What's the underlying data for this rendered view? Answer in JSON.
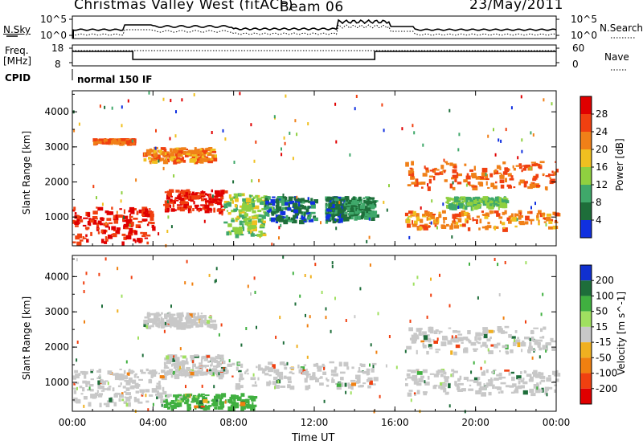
{
  "header": {
    "title": "Christmas Valley West (fitACF)",
    "beam": "Beam 06",
    "date": "23/May/2011"
  },
  "noise_panel": {
    "left_label": "N.Sky",
    "right_label": "N.Search",
    "left_ticks": [
      "10^5",
      "10^0"
    ],
    "right_ticks": [
      "10^5",
      "10^0"
    ]
  },
  "freq_panel": {
    "left_label": "Freq.",
    "left_unit": "[MHz]",
    "right_label": "Nave",
    "left_ticks": [
      "18",
      "8"
    ],
    "right_ticks": [
      "60",
      "0"
    ]
  },
  "cpid": {
    "label": "CPID",
    "mode": "normal 150 IF"
  },
  "colors": {
    "power_scale": [
      "#1030e0",
      "#1e6e3a",
      "#3fa86a",
      "#8fd040",
      "#f0c020",
      "#f08018",
      "#f04010",
      "#e00000"
    ],
    "velocity_scale": [
      "#1030d0",
      "#1e6e3a",
      "#40b040",
      "#a0e060",
      "#c8c8c8",
      "#f0b020",
      "#f08010",
      "#f04010",
      "#e00000"
    ]
  },
  "chart_data": [
    {
      "type": "heatmap",
      "title": "",
      "ylabel": "Slant Range [km]",
      "xlabel": "",
      "x_range": [
        "00:00",
        "24:00"
      ],
      "ylim": [
        180,
        4600
      ],
      "y_ticks": [
        "1000",
        "2000",
        "3000",
        "4000"
      ],
      "colorbar": {
        "label": "Power [dB]",
        "ticks": [
          "4",
          "8",
          "12",
          "16",
          "20",
          "24",
          "28"
        ],
        "range": [
          0,
          32
        ]
      },
      "regions": [
        {
          "t0": 0.0,
          "t1": 4.0,
          "r0": 300,
          "r1": 1300,
          "level": 28
        },
        {
          "t0": 1.0,
          "t1": 3.0,
          "r0": 3150,
          "r1": 3250,
          "level": 24
        },
        {
          "t0": 3.5,
          "t1": 7.0,
          "r0": 2600,
          "r1": 3000,
          "level": 22
        },
        {
          "t0": 4.5,
          "t1": 7.5,
          "r0": 1200,
          "r1": 1800,
          "level": 28
        },
        {
          "t0": 7.5,
          "t1": 9.5,
          "r0": 500,
          "r1": 1700,
          "level": 14
        },
        {
          "t0": 9.5,
          "t1": 12.0,
          "r0": 900,
          "r1": 1600,
          "level": 6
        },
        {
          "t0": 12.5,
          "t1": 13.5,
          "r0": 900,
          "r1": 1600,
          "level": 6
        },
        {
          "t0": 13.5,
          "t1": 15.0,
          "r0": 1000,
          "r1": 1600,
          "level": 8
        },
        {
          "t0": 16.5,
          "t1": 24.0,
          "r0": 1850,
          "r1": 2600,
          "level": 24
        },
        {
          "t0": 16.5,
          "t1": 24.0,
          "r0": 700,
          "r1": 1200,
          "level": 22
        },
        {
          "t0": 18.5,
          "t1": 21.5,
          "r0": 1300,
          "r1": 1600,
          "level": 12
        }
      ]
    },
    {
      "type": "heatmap",
      "title": "",
      "ylabel": "Slant Range [km]",
      "xlabel": "Time UT",
      "x_ticks": [
        "00:00",
        "04:00",
        "08:00",
        "12:00",
        "16:00",
        "20:00",
        "00:00"
      ],
      "ylim": [
        180,
        4600
      ],
      "y_ticks": [
        "1000",
        "2000",
        "3000",
        "4000"
      ],
      "colorbar": {
        "label": "Velocity [m s^-1]",
        "ticks": [
          "200",
          "100",
          "50",
          "15",
          "-15",
          "-50",
          "-100",
          "-200"
        ],
        "range": [
          -250,
          250
        ]
      },
      "regions": [
        {
          "t0": 0.0,
          "t1": 4.5,
          "r0": 400,
          "r1": 1400,
          "level": 0
        },
        {
          "t0": 3.5,
          "t1": 7.0,
          "r0": 2600,
          "r1": 3000,
          "level": 0
        },
        {
          "t0": 4.5,
          "t1": 7.5,
          "r0": 1200,
          "r1": 1800,
          "level": 0
        },
        {
          "t0": 4.5,
          "t1": 9.0,
          "r0": 300,
          "r1": 700,
          "level": 80
        },
        {
          "t0": 7.5,
          "t1": 15.0,
          "r0": 900,
          "r1": 1600,
          "level": 0
        },
        {
          "t0": 16.5,
          "t1": 24.0,
          "r0": 1850,
          "r1": 2600,
          "level": 0
        },
        {
          "t0": 16.5,
          "t1": 24.0,
          "r0": 700,
          "r1": 1400,
          "level": 0
        }
      ]
    }
  ]
}
